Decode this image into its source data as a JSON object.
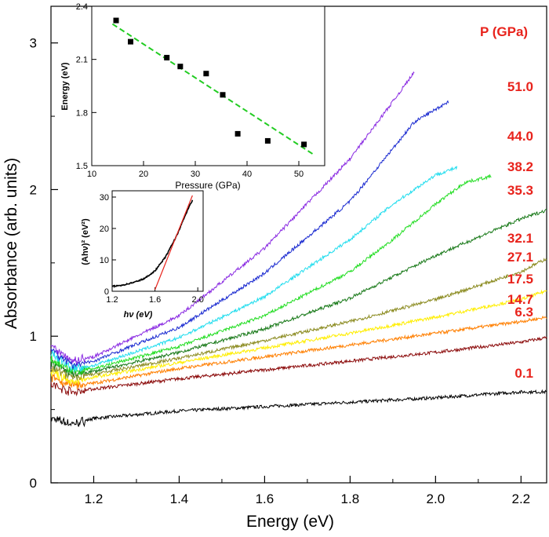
{
  "chart_data": [
    {
      "type": "line",
      "title": "",
      "xlabel": "Energy (eV)",
      "ylabel": "Absorbance (arb. units)",
      "xlim": [
        1.1,
        2.26
      ],
      "ylim": [
        0,
        3.25
      ],
      "x_ticks": [
        "1.2",
        "1.4",
        "1.6",
        "1.8",
        "2.0",
        "2.2"
      ],
      "y_ticks": [
        "0",
        "1",
        "2",
        "3"
      ],
      "legend_title": "P (GPa)",
      "series": [
        {
          "name": "0.1",
          "color": "#000000",
          "x": [
            1.1,
            1.15,
            1.2,
            1.4,
            1.6,
            1.8,
            2.0,
            2.2,
            2.26
          ],
          "y": [
            0.44,
            0.4,
            0.44,
            0.49,
            0.52,
            0.55,
            0.58,
            0.62,
            0.62
          ]
        },
        {
          "name": "6.3",
          "color": "#8b0a0a",
          "x": [
            1.1,
            1.15,
            1.2,
            1.4,
            1.6,
            1.8,
            2.0,
            2.2,
            2.26
          ],
          "y": [
            0.67,
            0.62,
            0.64,
            0.71,
            0.77,
            0.83,
            0.89,
            0.96,
            0.99
          ]
        },
        {
          "name": "14.7",
          "color": "#ff7f00",
          "x": [
            1.1,
            1.15,
            1.2,
            1.4,
            1.6,
            1.8,
            2.0,
            2.2,
            2.26
          ],
          "y": [
            0.72,
            0.66,
            0.68,
            0.78,
            0.86,
            0.94,
            1.02,
            1.1,
            1.13
          ]
        },
        {
          "name": "17.5",
          "color": "#ffee00",
          "x": [
            1.1,
            1.15,
            1.2,
            1.4,
            1.6,
            1.8,
            2.0,
            2.2,
            2.26
          ],
          "y": [
            0.76,
            0.69,
            0.72,
            0.82,
            0.92,
            1.02,
            1.13,
            1.25,
            1.31
          ]
        },
        {
          "name": "27.1",
          "color": "#8b8b20",
          "x": [
            1.1,
            1.15,
            1.2,
            1.4,
            1.6,
            1.8,
            2.0,
            2.2,
            2.26
          ],
          "y": [
            0.79,
            0.72,
            0.74,
            0.85,
            0.97,
            1.1,
            1.25,
            1.44,
            1.53
          ]
        },
        {
          "name": "32.1",
          "color": "#1a7a1a",
          "x": [
            1.1,
            1.15,
            1.2,
            1.4,
            1.6,
            1.8,
            2.0,
            2.2,
            2.26
          ],
          "y": [
            0.82,
            0.74,
            0.76,
            0.89,
            1.05,
            1.26,
            1.55,
            1.8,
            1.86
          ]
        },
        {
          "name": "35.3",
          "color": "#22dd22",
          "x": [
            1.1,
            1.15,
            1.2,
            1.4,
            1.6,
            1.8,
            1.9,
            2.0,
            2.07,
            2.13
          ],
          "y": [
            0.85,
            0.76,
            0.78,
            0.93,
            1.14,
            1.44,
            1.66,
            1.9,
            2.05,
            2.09
          ]
        },
        {
          "name": "38.2",
          "color": "#22ddee",
          "x": [
            1.1,
            1.15,
            1.2,
            1.4,
            1.6,
            1.8,
            1.9,
            2.0,
            2.05
          ],
          "y": [
            0.88,
            0.78,
            0.8,
            0.99,
            1.27,
            1.66,
            1.9,
            2.1,
            2.15
          ]
        },
        {
          "name": "44.0",
          "color": "#1a2ad0",
          "x": [
            1.1,
            1.15,
            1.2,
            1.4,
            1.6,
            1.8,
            1.9,
            1.95,
            2.03
          ],
          "y": [
            0.91,
            0.8,
            0.83,
            1.06,
            1.43,
            1.92,
            2.28,
            2.46,
            2.6
          ]
        },
        {
          "name": "51.0",
          "color": "#8a2be2",
          "x": [
            1.1,
            1.15,
            1.2,
            1.4,
            1.6,
            1.8,
            1.9,
            1.95
          ],
          "y": [
            0.94,
            0.83,
            0.86,
            1.14,
            1.6,
            2.21,
            2.6,
            2.8
          ]
        }
      ]
    },
    {
      "type": "scatter",
      "title": "",
      "xlabel": "Pressure (GPa)",
      "ylabel": "Energy (eV)",
      "xlim": [
        10,
        55
      ],
      "ylim": [
        1.5,
        2.4
      ],
      "x_ticks": [
        "10",
        "20",
        "30",
        "40",
        "50"
      ],
      "y_ticks": [
        "1.5",
        "1.8",
        "2.1",
        "2.4"
      ],
      "points": {
        "x": [
          14.7,
          17.5,
          24.5,
          27.1,
          32.1,
          35.3,
          38.2,
          44.0,
          51.0
        ],
        "y": [
          2.32,
          2.2,
          2.11,
          2.06,
          2.02,
          1.9,
          1.68,
          1.64,
          1.62
        ]
      },
      "fit_line": {
        "x": [
          14,
          53
        ],
        "y": [
          2.3,
          1.56
        ],
        "color": "#22cc22"
      }
    },
    {
      "type": "line",
      "title": "",
      "xlabel": "hν (eV)",
      "ylabel": "(Ahν)² (eV²)",
      "xlim": [
        1.2,
        2.05
      ],
      "ylim": [
        0,
        32
      ],
      "x_ticks": [
        "1.2",
        "1.6",
        "2.0"
      ],
      "y_ticks": [
        "0",
        "10",
        "20",
        "30"
      ],
      "series": [
        {
          "name": "",
          "color": "#000000",
          "x": [
            1.2,
            1.3,
            1.4,
            1.5,
            1.6,
            1.7,
            1.8,
            1.9,
            1.95
          ],
          "y": [
            1.5,
            2.0,
            2.8,
            4.0,
            6.5,
            11,
            17.5,
            25.5,
            29
          ]
        },
        {
          "name": "",
          "color": "#e8231c",
          "x": [
            1.6,
            1.95
          ],
          "y": [
            0.5,
            30.5
          ]
        }
      ]
    }
  ]
}
